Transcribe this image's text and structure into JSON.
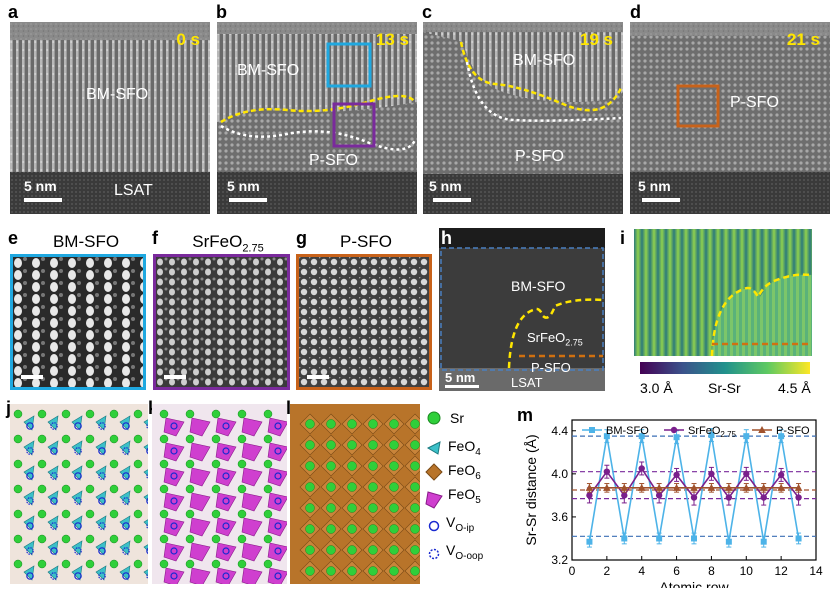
{
  "figure": {
    "panel_letters": [
      "a",
      "b",
      "c",
      "d",
      "e",
      "f",
      "g",
      "h",
      "i",
      "j",
      "k",
      "l",
      "m"
    ],
    "top": {
      "a": {
        "time": "0 s",
        "labels": [
          "BM-SFO",
          "LSAT"
        ],
        "scale": "5 nm"
      },
      "b": {
        "time": "13 s",
        "labels": [
          "BM-SFO",
          "P-SFO"
        ],
        "scale": "5 nm"
      },
      "c": {
        "time": "19 s",
        "labels": [
          "BM-SFO",
          "P-SFO"
        ],
        "scale": "5 nm"
      },
      "d": {
        "time": "21 s",
        "labels": [
          "P-SFO"
        ],
        "scale": "5 nm"
      }
    },
    "middle": {
      "e_title": "BM-SFO",
      "f_title_main": "SrFeO",
      "f_title_sub": "2.75",
      "g_title": "P-SFO",
      "h_labels": {
        "bm": "BM-SFO",
        "mid_main": "SrFeO",
        "mid_sub": "2.75",
        "p": "P-SFO",
        "lsat": "LSAT",
        "scale": "5 nm"
      },
      "i_colorbar": {
        "min": "3.0 Å",
        "label": "Sr-Sr",
        "max": "4.5 Å"
      }
    },
    "legend": {
      "sr": "Sr",
      "feo4_main": "FeO",
      "feo4_sub": "4",
      "feo6_main": "FeO",
      "feo6_sub": "6",
      "feo5_main": "FeO",
      "feo5_sub": "5",
      "vip_main": "V",
      "vip_sub": "O-ip",
      "voop_main": "V",
      "voop_sub": "O-oop"
    },
    "colors": {
      "yellow": "#ffe600",
      "cyan": "#1fa8e0",
      "purple": "#7a2a9c",
      "orange": "#c8621a",
      "sr_green": "#2fcf3a",
      "feo4": "#3cc0c8",
      "feo6": "#b8742a",
      "feo5": "#cf3fcf"
    }
  },
  "chart_data": {
    "type": "line",
    "title": "",
    "xlabel": "Atomic row",
    "ylabel_main": "Sr-Sr distance (Å)",
    "xlim": [
      0,
      14
    ],
    "ylim": [
      3.2,
      4.5
    ],
    "xticks": [
      0,
      2,
      4,
      6,
      8,
      10,
      12,
      14
    ],
    "yticks": [
      3.2,
      3.6,
      4.0,
      4.4
    ],
    "x": [
      1,
      2,
      3,
      4,
      5,
      6,
      7,
      8,
      9,
      10,
      11,
      12,
      13
    ],
    "hlines": [
      {
        "y": 4.35,
        "color": "#3a6fb5"
      },
      {
        "y": 4.02,
        "color": "#7a2a9c"
      },
      {
        "y": 3.85,
        "color": "#a0522d"
      },
      {
        "y": 3.77,
        "color": "#7a2a9c"
      },
      {
        "y": 3.42,
        "color": "#3a6fb5"
      }
    ],
    "series": [
      {
        "name": "BM-SFO",
        "color": "#4db3e8",
        "marker": "square",
        "values": [
          3.37,
          4.35,
          3.4,
          4.35,
          3.4,
          4.34,
          3.4,
          4.36,
          3.37,
          4.35,
          3.37,
          4.35,
          3.4
        ],
        "err": [
          0.05,
          0.06,
          0.05,
          0.06,
          0.05,
          0.06,
          0.05,
          0.06,
          0.05,
          0.06,
          0.05,
          0.06,
          0.05
        ]
      },
      {
        "name": "SrFeO2.75",
        "name_main": "SrFeO",
        "name_sub": "2.75",
        "color": "#7a1f8c",
        "marker": "circle",
        "values": [
          3.8,
          4.02,
          3.8,
          4.05,
          3.8,
          3.99,
          3.78,
          4.0,
          3.78,
          4.0,
          3.78,
          3.99,
          3.78
        ],
        "err": [
          0.07,
          0.06,
          0.07,
          0.06,
          0.07,
          0.06,
          0.07,
          0.06,
          0.07,
          0.06,
          0.07,
          0.06,
          0.07
        ]
      },
      {
        "name": "P-SFO",
        "color": "#a0522d",
        "marker": "triangle",
        "values": [
          3.87,
          3.87,
          3.87,
          3.87,
          3.87,
          3.87,
          3.87,
          3.87,
          3.87,
          3.87,
          3.87,
          3.87,
          3.87
        ],
        "err": [
          0.04,
          0.04,
          0.04,
          0.04,
          0.04,
          0.04,
          0.04,
          0.04,
          0.04,
          0.04,
          0.04,
          0.04,
          0.04
        ]
      }
    ],
    "legend_position": "top"
  }
}
